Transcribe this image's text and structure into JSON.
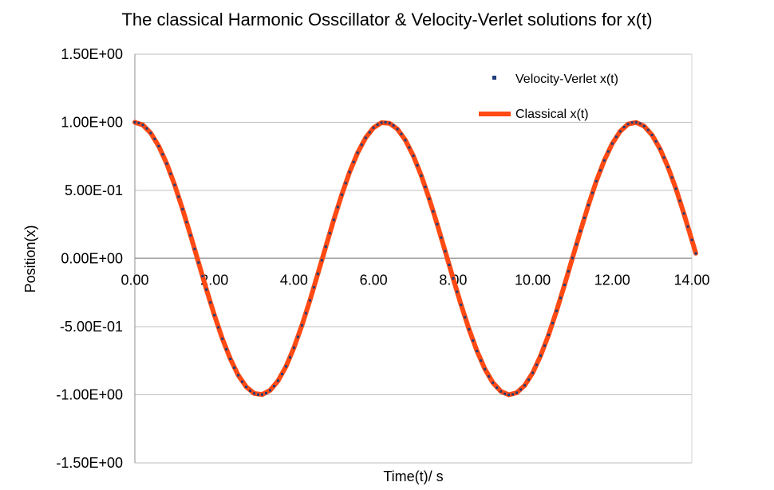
{
  "chart_data": {
    "type": "line",
    "title": "The classical Harmonic Osscillator & Velocity-Verlet solutions for x(t)",
    "xlabel": "Time(t)/ s",
    "ylabel": "Position(x)",
    "xlim": [
      0,
      14
    ],
    "ylim": [
      -1.5,
      1.5
    ],
    "x_ticks": [
      0,
      2,
      4,
      6,
      8,
      10,
      12,
      14
    ],
    "x_tick_labels": [
      "0.00",
      "2.00",
      "4.00",
      "6.00",
      "8.00",
      "10.00",
      "12.00",
      "14.00"
    ],
    "y_ticks": [
      1.5,
      1.0,
      0.5,
      0.0,
      -0.5,
      -1.0,
      -1.5
    ],
    "y_tick_labels": [
      "1.50E+00",
      "1.00E+00",
      "5.00E-01",
      "0.00E+00",
      "-5.00E-01",
      "-1.00E+00",
      "-1.50E+00"
    ],
    "grid": "horizontal",
    "legend_position": "top-right",
    "series": [
      {
        "name": "Classical x(t)",
        "style": "thick-line",
        "color": "#ff4a14",
        "x": [
          0.0,
          0.2,
          0.4,
          0.6,
          0.8,
          1.0,
          1.2,
          1.4,
          1.6,
          1.8,
          2.0,
          2.2,
          2.4,
          2.6,
          2.8,
          3.0,
          3.2,
          3.4,
          3.6,
          3.8,
          4.0,
          4.2,
          4.4,
          4.6,
          4.8,
          5.0,
          5.2,
          5.4,
          5.6,
          5.8,
          6.0,
          6.2,
          6.4,
          6.6,
          6.8,
          7.0,
          7.2,
          7.4,
          7.6,
          7.8,
          8.0,
          8.2,
          8.4,
          8.6,
          8.8,
          9.0,
          9.2,
          9.4,
          9.6,
          9.8,
          10.0,
          10.2,
          10.4,
          10.6,
          10.8,
          11.0,
          11.2,
          11.4,
          11.6,
          11.8,
          12.0,
          12.2,
          12.4,
          12.6,
          12.8,
          13.0,
          13.2,
          13.4,
          13.6,
          13.8,
          14.0,
          14.1
        ],
        "y": [
          1.0,
          0.98,
          0.921,
          0.825,
          0.697,
          0.54,
          0.362,
          0.17,
          -0.029,
          -0.227,
          -0.416,
          -0.589,
          -0.737,
          -0.857,
          -0.942,
          -0.99,
          -0.998,
          -0.967,
          -0.897,
          -0.791,
          -0.654,
          -0.49,
          -0.307,
          -0.112,
          0.087,
          0.284,
          0.469,
          0.635,
          0.776,
          0.886,
          0.96,
          0.997,
          0.993,
          0.95,
          0.869,
          0.754,
          0.608,
          0.439,
          0.252,
          0.054,
          -0.146,
          -0.339,
          -0.519,
          -0.679,
          -0.811,
          -0.911,
          -0.975,
          -1.0,
          -0.985,
          -0.931,
          -0.839,
          -0.713,
          -0.56,
          -0.384,
          -0.193,
          0.004,
          0.202,
          0.392,
          0.568,
          0.72,
          0.844,
          0.934,
          0.987,
          0.999,
          0.972,
          0.907,
          0.805,
          0.672,
          0.512,
          0.331,
          0.137,
          0.039
        ]
      },
      {
        "name": "Velocity-Verlet x(t)",
        "style": "markers",
        "color": "#1f3d7a",
        "x": [
          0.0,
          0.1,
          0.2,
          0.3,
          0.4,
          0.5,
          0.6,
          0.7,
          0.8,
          0.9,
          1.0,
          1.1,
          1.2,
          1.3,
          1.4,
          1.5,
          1.6,
          1.7,
          1.8,
          1.9,
          2.0,
          2.1,
          2.2,
          2.3,
          2.4,
          2.5,
          2.6,
          2.7,
          2.8,
          2.9,
          3.0,
          3.1,
          3.2,
          3.3,
          3.4,
          3.5,
          3.6,
          3.7,
          3.8,
          3.9,
          4.0,
          4.1,
          4.2,
          4.3,
          4.4,
          4.5,
          4.6,
          4.7,
          4.8,
          4.9,
          5.0,
          5.1,
          5.2,
          5.3,
          5.4,
          5.5,
          5.6,
          5.7,
          5.8,
          5.9,
          6.0,
          6.1,
          6.2,
          6.3,
          6.4,
          6.5,
          6.6,
          6.7,
          6.8,
          6.9,
          7.0,
          7.1,
          7.2,
          7.3,
          7.4,
          7.5,
          7.6,
          7.7,
          7.8,
          7.9,
          8.0,
          8.1,
          8.2,
          8.3,
          8.4,
          8.5,
          8.6,
          8.7,
          8.8,
          8.9,
          9.0,
          9.1,
          9.2,
          9.3,
          9.4,
          9.5,
          9.6,
          9.7,
          9.8,
          9.9,
          10.0,
          10.1,
          10.2,
          10.3,
          10.4,
          10.5,
          10.6,
          10.7,
          10.8,
          10.9,
          11.0,
          11.1,
          11.2,
          11.3,
          11.4,
          11.5,
          11.6,
          11.7,
          11.8,
          11.9,
          12.0,
          12.1,
          12.2,
          12.3,
          12.4,
          12.5,
          12.6,
          12.7,
          12.8,
          12.9,
          13.0,
          13.1,
          13.2,
          13.3,
          13.4,
          13.5,
          13.6,
          13.7,
          13.8,
          13.9,
          14.0,
          14.1
        ],
        "y": [
          1.0,
          0.995,
          0.98,
          0.955,
          0.921,
          0.878,
          0.825,
          0.765,
          0.697,
          0.622,
          0.54,
          0.454,
          0.362,
          0.267,
          0.17,
          0.071,
          -0.029,
          -0.129,
          -0.227,
          -0.323,
          -0.416,
          -0.505,
          -0.589,
          -0.666,
          -0.737,
          -0.801,
          -0.857,
          -0.904,
          -0.942,
          -0.971,
          -0.99,
          -0.999,
          -0.998,
          -0.988,
          -0.967,
          -0.936,
          -0.897,
          -0.848,
          -0.791,
          -0.726,
          -0.654,
          -0.575,
          -0.49,
          -0.401,
          -0.307,
          -0.211,
          -0.112,
          -0.013,
          0.087,
          0.186,
          0.284,
          0.378,
          0.469,
          0.554,
          0.635,
          0.709,
          0.776,
          0.835,
          0.886,
          0.927,
          0.96,
          0.983,
          0.997,
          1.0,
          0.993,
          0.977,
          0.95,
          0.914,
          0.869,
          0.815,
          0.754,
          0.684,
          0.608,
          0.526,
          0.439,
          0.347,
          0.252,
          0.154,
          0.054,
          -0.046,
          -0.146,
          -0.244,
          -0.339,
          -0.431,
          -0.519,
          -0.602,
          -0.679,
          -0.749,
          -0.811,
          -0.865,
          -0.911,
          -0.948,
          -0.975,
          -0.993,
          -1.0,
          -0.997,
          -0.985,
          -0.962,
          -0.931,
          -0.889,
          -0.839,
          -0.78,
          -0.713,
          -0.64,
          -0.56,
          -0.474,
          -0.384,
          -0.289,
          -0.193,
          -0.094,
          0.004,
          0.104,
          0.202,
          0.299,
          0.392,
          0.482,
          0.568,
          0.647,
          0.72,
          0.786,
          0.844,
          0.893,
          0.934,
          0.965,
          0.987,
          0.998,
          0.999,
          0.991,
          0.972,
          0.944,
          0.907,
          0.86,
          0.805,
          0.741,
          0.672,
          0.595,
          0.512,
          0.424,
          0.331,
          0.235,
          0.137,
          0.038
        ]
      }
    ]
  }
}
